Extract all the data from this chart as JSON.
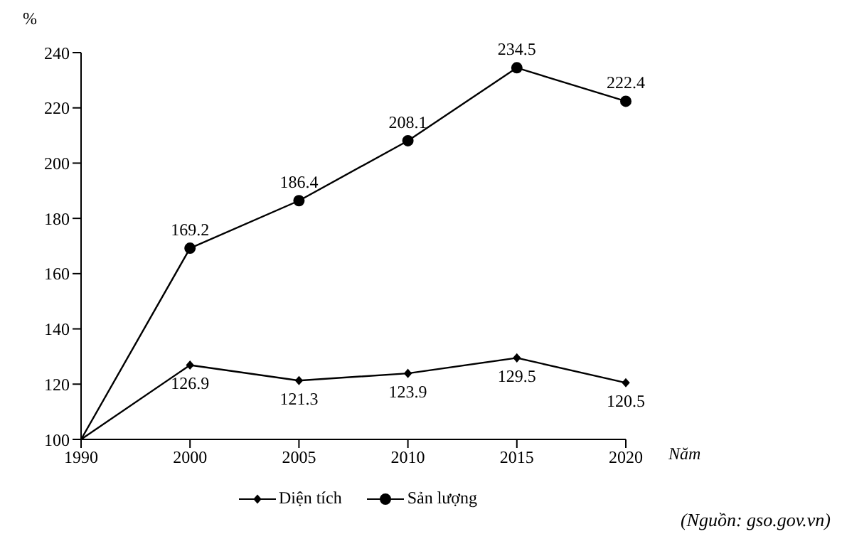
{
  "chart_data": {
    "type": "line",
    "xlabel": "Năm",
    "ylabel": "%",
    "categories": [
      "1990",
      "2000",
      "2005",
      "2010",
      "2015",
      "2020"
    ],
    "series": [
      {
        "name": "Diện tích",
        "color": "#000000",
        "marker": "diamond",
        "values": [
          100,
          126.9,
          121.3,
          123.9,
          129.5,
          120.5
        ],
        "value_labels": [
          null,
          "126.9",
          "121.3",
          "123.9",
          "129.5",
          "120.5"
        ]
      },
      {
        "name": "Sản lượng",
        "color": "#000000",
        "marker": "circle",
        "values": [
          100,
          169.2,
          186.4,
          208.1,
          234.5,
          222.4
        ],
        "value_labels": [
          null,
          "169.2",
          "186.4",
          "208.1",
          "234.5",
          "222.4"
        ]
      }
    ],
    "ylim": [
      100,
      240
    ],
    "yticks": [
      100,
      120,
      140,
      160,
      180,
      200,
      220,
      240
    ],
    "grid": false,
    "legend": "bottom",
    "line_style": "solid",
    "annotations": [
      "(Nguồn: gso.gov.vn)"
    ]
  }
}
